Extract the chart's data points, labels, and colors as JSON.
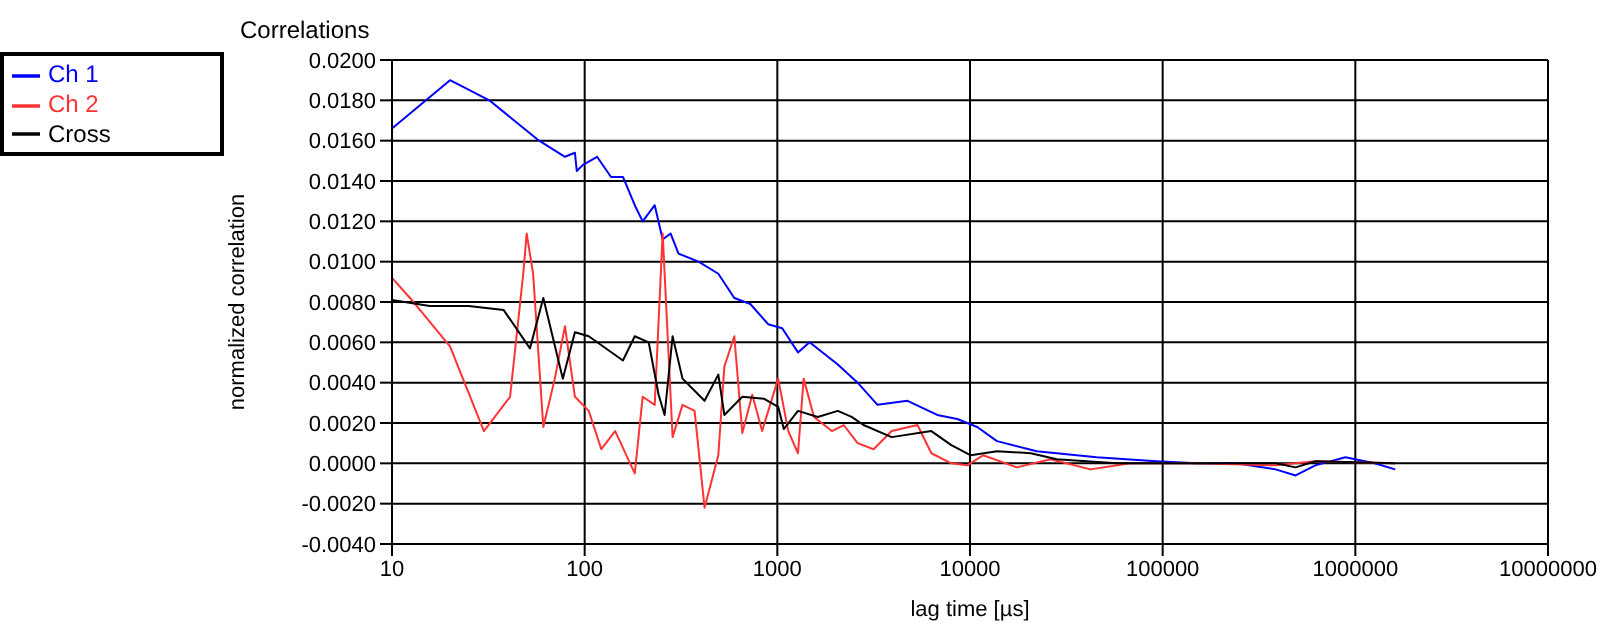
{
  "chart_data": {
    "type": "line",
    "title": "Correlations",
    "xlabel": "lag time [µs]",
    "ylabel": "normalized correlation",
    "log": "x",
    "grid": true,
    "legend": "top left",
    "marker": "none",
    "line_style": "solid",
    "xlim": [
      10,
      10000000
    ],
    "xticks": [
      10,
      100,
      1000,
      10000,
      100000,
      1000000,
      10000000
    ],
    "ylim": [
      -0.004,
      0.02
    ],
    "yticks": [
      {
        "value": -0.004,
        "label": "-0.0040"
      },
      {
        "value": -0.002,
        "label": "-0.0020"
      },
      {
        "value": 0,
        "label": "0.0000"
      },
      {
        "value": 0.002,
        "label": "0.0020"
      },
      {
        "value": 0.004,
        "label": "0.0040"
      },
      {
        "value": 0.006,
        "label": "0.0060"
      },
      {
        "value": 0.008,
        "label": "0.0080"
      },
      {
        "value": 0.01,
        "label": "0.0100"
      },
      {
        "value": 0.012,
        "label": "0.0120"
      },
      {
        "value": 0.014,
        "label": "0.0140"
      },
      {
        "value": 0.016,
        "label": "0.0160"
      },
      {
        "value": 0.018,
        "label": "0.0180"
      },
      {
        "value": 0.02,
        "label": "0.0200"
      }
    ],
    "series": [
      {
        "name": "Ch 1",
        "color": "#0000ff",
        "x": [
          10,
          20,
          32,
          58,
          79,
          89,
          91,
          98,
          116,
          137,
          158,
          182,
          200,
          231,
          254,
          279,
          307,
          390,
          494,
          598,
          724,
          896,
          1060,
          1280,
          1470,
          2060,
          2610,
          3310,
          4740,
          6760,
          8590,
          10900,
          13800,
          22200,
          45400,
          92700,
          149000,
          240000,
          386000,
          490000,
          620000,
          887000,
          1260000,
          1610000
        ],
        "values": [
          0.0166,
          0.019,
          0.018,
          0.016,
          0.0152,
          0.0154,
          0.0145,
          0.0148,
          0.0152,
          0.0142,
          0.0142,
          0.0128,
          0.012,
          0.0128,
          0.0111,
          0.0114,
          0.0104,
          0.01,
          0.0094,
          0.0082,
          0.0079,
          0.0069,
          0.0067,
          0.0055,
          0.006,
          0.0049,
          0.004,
          0.0029,
          0.0031,
          0.0024,
          0.0022,
          0.0018,
          0.0011,
          0.0006,
          0.0003,
          0.0001,
          0,
          0,
          -0.0003,
          -0.0006,
          -0.0001,
          0.0003,
          0,
          -0.0003
        ]
      },
      {
        "name": "Ch 2",
        "color": "#ff3333",
        "x": [
          10,
          12.4,
          20,
          30,
          41,
          48,
          50,
          54,
          61,
          70,
          79,
          89,
          105,
          122,
          144,
          182,
          200,
          231,
          254,
          286,
          322,
          372,
          419,
          494,
          531,
          598,
          658,
          741,
          834,
          1010,
          1140,
          1280,
          1370,
          1550,
          1920,
          2210,
          2610,
          3160,
          3920,
          5340,
          6300,
          8000,
          9680,
          11700,
          17500,
          26200,
          42200,
          68000,
          149000,
          386000,
          621000,
          1610000
        ],
        "values": [
          0.0092,
          0.0082,
          0.0058,
          0.0016,
          0.0033,
          0.0094,
          0.0114,
          0.0094,
          0.0018,
          0.0042,
          0.0068,
          0.0033,
          0.0026,
          0.0007,
          0.0016,
          -0.0005,
          0.0033,
          0.0029,
          0.0114,
          0.0013,
          0.0029,
          0.0026,
          -0.0022,
          0.0004,
          0.0048,
          0.0063,
          0.0015,
          0.0034,
          0.0016,
          0.0042,
          0.0016,
          0.0005,
          0.0042,
          0.0023,
          0.0016,
          0.0019,
          0.001,
          0.0007,
          0.0016,
          0.0019,
          0.0005,
          0,
          -0.0001,
          0.0004,
          -0.0002,
          0.0002,
          -0.0003,
          0,
          0,
          -0.0001,
          0.0001,
          0
        ]
      },
      {
        "name": "Cross",
        "color": "#000000",
        "x": [
          10,
          15.7,
          25,
          38,
          52,
          61,
          77,
          89,
          105,
          158,
          182,
          215,
          242,
          260,
          286,
          322,
          419,
          494,
          531,
          658,
          855,
          1010,
          1080,
          1280,
          1620,
          2060,
          2430,
          2800,
          3920,
          6300,
          8000,
          10100,
          13800,
          20700,
          28200,
          57500,
          149000,
          386000,
          490000,
          621000,
          1610000
        ],
        "values": [
          0.0081,
          0.0078,
          0.0078,
          0.0076,
          0.0057,
          0.0082,
          0.0042,
          0.0065,
          0.0063,
          0.0051,
          0.0063,
          0.006,
          0.0034,
          0.0024,
          0.0063,
          0.0042,
          0.0031,
          0.0044,
          0.0024,
          0.0033,
          0.0032,
          0.0028,
          0.0017,
          0.0026,
          0.0023,
          0.0026,
          0.0023,
          0.0019,
          0.0013,
          0.0016,
          0.0009,
          0.0004,
          0.0006,
          0.0005,
          0.0002,
          0,
          0,
          0,
          -0.0002,
          0.0001,
          0
        ]
      }
    ]
  }
}
